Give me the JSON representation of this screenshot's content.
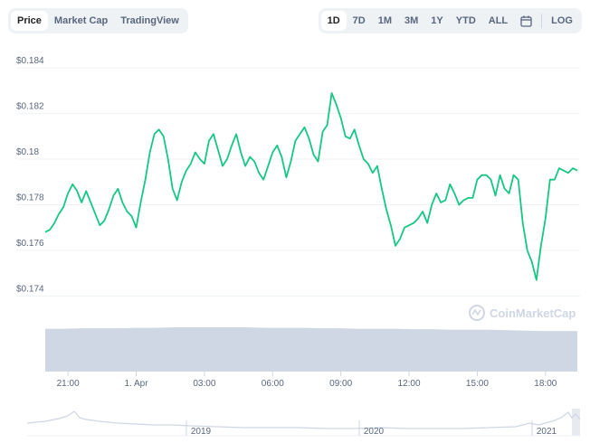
{
  "tabs": [
    {
      "label": "Price",
      "active": true
    },
    {
      "label": "Market Cap",
      "active": false
    },
    {
      "label": "TradingView",
      "active": false
    }
  ],
  "ranges": [
    {
      "label": "1D",
      "active": true
    },
    {
      "label": "7D",
      "active": false
    },
    {
      "label": "1M",
      "active": false
    },
    {
      "label": "3M",
      "active": false
    },
    {
      "label": "1Y",
      "active": false
    },
    {
      "label": "YTD",
      "active": false
    },
    {
      "label": "ALL",
      "active": false
    }
  ],
  "calendar_icon": "calendar-icon",
  "log_label": "LOG",
  "watermark": "CoinMarketCap",
  "colors": {
    "line": "#16c784",
    "volume": "#cfd6e4",
    "grid": "#eff2f5",
    "axis_text": "#58667e"
  },
  "chart_data": {
    "type": "line",
    "title": "",
    "xlabel": "",
    "ylabel": "",
    "ylim": [
      0.1733,
      0.1848
    ],
    "y_ticks": [
      "$0.184",
      "$0.182",
      "$0.18",
      "$0.178",
      "$0.176",
      "$0.174"
    ],
    "y_tick_values": [
      0.184,
      0.182,
      0.18,
      0.178,
      0.176,
      0.174
    ],
    "x_ticks": [
      "21:00",
      "1. Apr",
      "03:00",
      "06:00",
      "09:00",
      "12:00",
      "15:00",
      "18:00"
    ],
    "x_tick_hours": [
      21,
      24,
      27,
      30,
      33,
      36,
      39,
      42
    ],
    "xlim_hours": [
      20,
      43.5
    ],
    "grid": true,
    "series": [
      {
        "x_hours": [
          20.0,
          20.2,
          20.4,
          20.6,
          20.8,
          21.0,
          21.2,
          21.4,
          21.6,
          21.8,
          22.0,
          22.2,
          22.4,
          22.6,
          22.8,
          23.0,
          23.2,
          23.4,
          23.6,
          23.8,
          24.0,
          24.2,
          24.4,
          24.6,
          24.8,
          25.0,
          25.2,
          25.4,
          25.6,
          25.8,
          26.0,
          26.2,
          26.4,
          26.6,
          26.8,
          27.0,
          27.2,
          27.4,
          27.6,
          27.8,
          28.0,
          28.2,
          28.4,
          28.6,
          28.8,
          29.0,
          29.2,
          29.4,
          29.6,
          29.8,
          30.0,
          30.2,
          30.4,
          30.6,
          30.8,
          31.0,
          31.2,
          31.4,
          31.6,
          31.8,
          32.0,
          32.2,
          32.4,
          32.6,
          32.8,
          33.0,
          33.2,
          33.4,
          33.6,
          33.8,
          34.0,
          34.2,
          34.4,
          34.6,
          34.8,
          35.0,
          35.2,
          35.4,
          35.6,
          35.8,
          36.0,
          36.2,
          36.4,
          36.6,
          36.8,
          37.0,
          37.2,
          37.4,
          37.6,
          37.8,
          38.0,
          38.2,
          38.4,
          38.6,
          38.8,
          39.0,
          39.2,
          39.4,
          39.6,
          39.8,
          40.0,
          40.2,
          40.4,
          40.6,
          40.8,
          41.0,
          41.2,
          41.4,
          41.6,
          41.8,
          42.0,
          42.2,
          42.4,
          42.6,
          42.8,
          43.0,
          43.2,
          43.4
        ],
        "values": [
          0.1768,
          0.1769,
          0.1772,
          0.1776,
          0.1779,
          0.1785,
          0.1789,
          0.1786,
          0.1781,
          0.1786,
          0.1781,
          0.1776,
          0.1771,
          0.1773,
          0.1778,
          0.1784,
          0.1787,
          0.1781,
          0.1777,
          0.1775,
          0.177,
          0.1781,
          0.1791,
          0.1803,
          0.1811,
          0.1813,
          0.181,
          0.18,
          0.1787,
          0.1782,
          0.179,
          0.1795,
          0.1798,
          0.1803,
          0.18,
          0.1798,
          0.1808,
          0.1811,
          0.1804,
          0.1797,
          0.18,
          0.1806,
          0.1811,
          0.1803,
          0.1797,
          0.1801,
          0.1799,
          0.1794,
          0.1791,
          0.1797,
          0.1803,
          0.1806,
          0.1801,
          0.1792,
          0.1799,
          0.1808,
          0.1811,
          0.1814,
          0.1809,
          0.1802,
          0.1799,
          0.1812,
          0.1815,
          0.1829,
          0.1824,
          0.1818,
          0.181,
          0.1809,
          0.1813,
          0.1806,
          0.18,
          0.1798,
          0.1794,
          0.1797,
          0.1787,
          0.1778,
          0.1771,
          0.1762,
          0.1765,
          0.177,
          0.1771,
          0.1772,
          0.1774,
          0.1777,
          0.1772,
          0.178,
          0.1785,
          0.1781,
          0.1782,
          0.1789,
          0.1785,
          0.178,
          0.1782,
          0.1783,
          0.1783,
          0.1791,
          0.1793,
          0.1793,
          0.1791,
          0.1784,
          0.1793,
          0.1787,
          0.1785,
          0.1793,
          0.1791,
          0.1772,
          0.176,
          0.1755,
          0.1747,
          0.1762,
          0.1774,
          0.1791,
          0.1791,
          0.1796,
          0.1795,
          0.1794,
          0.1796,
          0.1795
        ]
      }
    ],
    "volume": [
      0.93,
      0.93,
      0.94,
      0.94,
      0.94,
      0.95,
      0.95,
      0.96,
      0.96,
      0.96,
      0.96,
      0.96,
      0.95,
      0.95,
      0.95,
      0.94,
      0.94,
      0.93,
      0.93,
      0.93,
      0.92,
      0.92,
      0.91,
      0.91,
      0.91,
      0.9,
      0.89,
      0.88,
      0.88,
      0.88
    ],
    "navigator_ticks": [
      "2019",
      "2020",
      "2021"
    ]
  }
}
